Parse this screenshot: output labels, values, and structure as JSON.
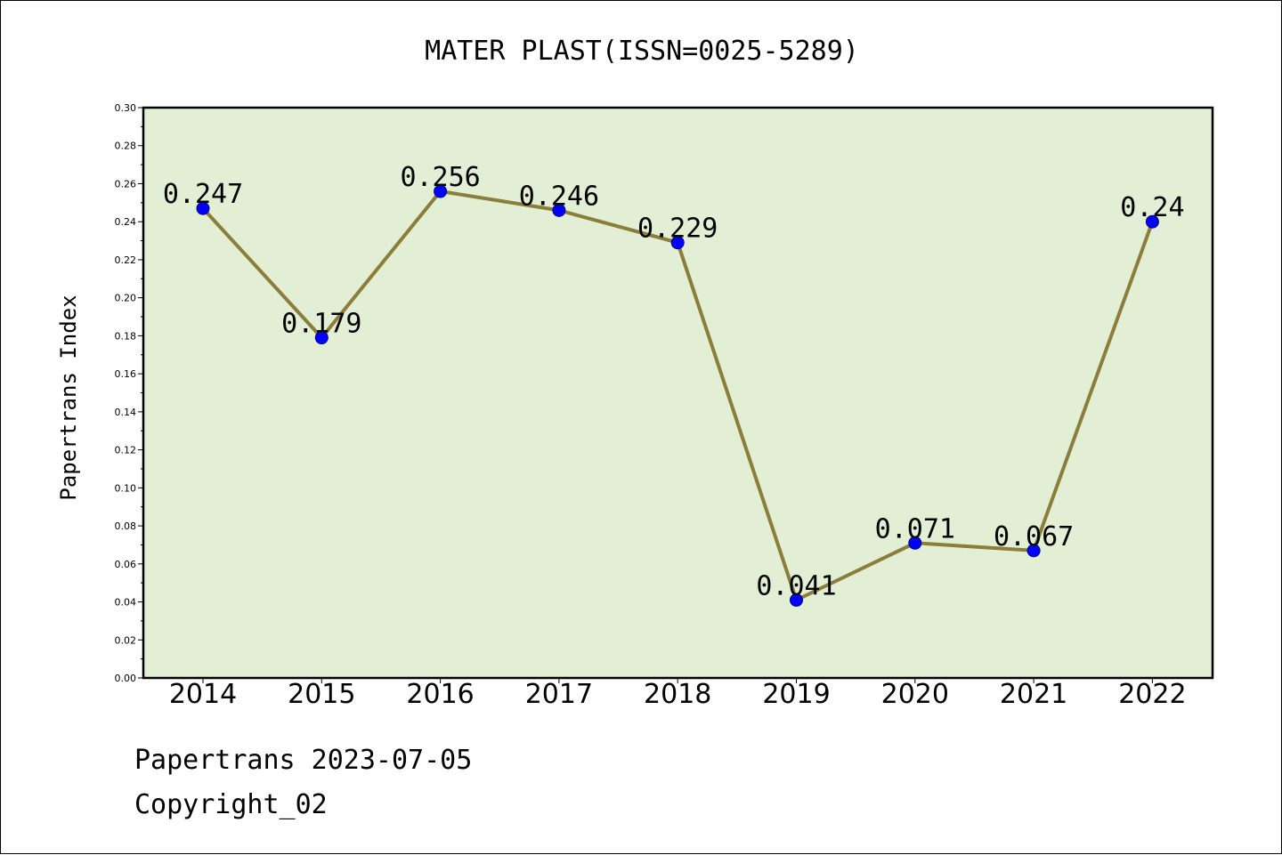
{
  "colors": {
    "plot_background": "#e2efd5",
    "line": "#8b7d3a",
    "marker": "#0000ff",
    "marker_edge": "#000080",
    "axis": "#000000"
  },
  "footer": {
    "line1": "Papertrans 2023-07-05",
    "line2": "Copyright_02"
  },
  "chart_data": {
    "type": "line",
    "title": "MATER PLAST(ISSN=0025-5289)",
    "xlabel": "",
    "ylabel": "Papertrans Index",
    "categories": [
      "2014",
      "2015",
      "2016",
      "2017",
      "2018",
      "2019",
      "2020",
      "2021",
      "2022"
    ],
    "series": [
      {
        "values": [
          0.247,
          0.179,
          0.256,
          0.246,
          0.229,
          0.041,
          0.071,
          0.067,
          0.24
        ],
        "labels": [
          "0.247",
          "0.179",
          "0.256",
          "0.246",
          "0.229",
          "0.041",
          "0.071",
          "0.067",
          "0.24"
        ]
      }
    ],
    "ylim": [
      0,
      0.3
    ],
    "yticks": [
      "0.00",
      "0.02",
      "0.04",
      "0.06",
      "0.08",
      "0.10",
      "0.12",
      "0.14",
      "0.16",
      "0.18",
      "0.20",
      "0.22",
      "0.24",
      "0.26",
      "0.28",
      "0.30"
    ],
    "grid": false,
    "legend": "none"
  }
}
